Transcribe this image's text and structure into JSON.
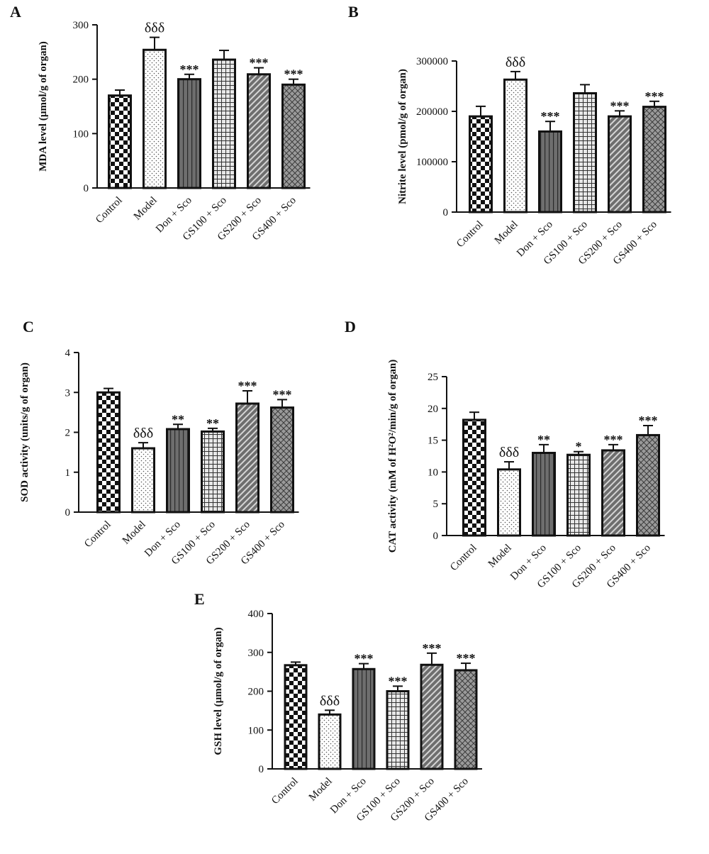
{
  "figure": {
    "background": "#ffffff",
    "ink": "#111111",
    "bar_dark": "#6e6e6e",
    "bar_mid": "#9a9a9a"
  },
  "chart_data": [
    {
      "panel": "A",
      "type": "bar",
      "categories": [
        "Control",
        "Model",
        "Don + Sco",
        "GS100 + Sco",
        "GS200 + Sco",
        "GS400 + Sco"
      ],
      "values": [
        170,
        254,
        200,
        236,
        209,
        190
      ],
      "errors": [
        10,
        23,
        9,
        17,
        12,
        10
      ],
      "annotations": [
        "",
        "δδδ",
        "***",
        "",
        "***",
        "***"
      ],
      "ylabel": "MDA level (µmol/g of organ)",
      "ylim": [
        0,
        300
      ],
      "yticks": [
        0,
        100,
        200,
        300
      ],
      "ytick_labels": [
        "0",
        "100",
        "200",
        "300"
      ]
    },
    {
      "panel": "B",
      "type": "bar",
      "categories": [
        "Control",
        "Model",
        "Don + Sco",
        "GS100 + Sco",
        "GS200 + Sco",
        "GS400 + Sco"
      ],
      "values": [
        190000,
        263000,
        160000,
        236000,
        190000,
        209000
      ],
      "errors": [
        20000,
        16000,
        20000,
        17000,
        11000,
        11000
      ],
      "annotations": [
        "",
        "δδδ",
        "***",
        "",
        "***",
        "***"
      ],
      "ylabel": "Nitrite level (pmol/g of organ)",
      "ylim": [
        0,
        300000
      ],
      "yticks": [
        0,
        100000,
        200000,
        300000
      ],
      "ytick_labels": [
        "0",
        "100000",
        "200000",
        "300000"
      ]
    },
    {
      "panel": "C",
      "type": "bar",
      "categories": [
        "Control",
        "Model",
        "Don + Sco",
        "GS100 + Sco",
        "GS200 + Sco",
        "GS400 + Sco"
      ],
      "values": [
        3.0,
        1.6,
        2.08,
        2.02,
        2.72,
        2.62
      ],
      "errors": [
        0.1,
        0.14,
        0.12,
        0.08,
        0.32,
        0.2
      ],
      "annotations": [
        "",
        "δδδ",
        "**",
        "**",
        "***",
        "***"
      ],
      "ylabel": "SOD activity (units/g of organ)",
      "ylim": [
        0,
        4
      ],
      "yticks": [
        0,
        1,
        2,
        3,
        4
      ],
      "ytick_labels": [
        "0",
        "1",
        "2",
        "3",
        "4"
      ]
    },
    {
      "panel": "D",
      "type": "bar",
      "categories": [
        "Control",
        "Model",
        "Don + Sco",
        "GS100 + Sco",
        "GS200 + Sco",
        "GS400 + Sco"
      ],
      "values": [
        18.2,
        10.4,
        13.0,
        12.7,
        13.4,
        15.8
      ],
      "errors": [
        1.2,
        1.2,
        1.3,
        0.5,
        0.9,
        1.5
      ],
      "annotations": [
        "",
        "δδδ",
        "**",
        "*",
        "***",
        "***"
      ],
      "ylabel": "CAT activity (mM of H²O²/min/g of organ)",
      "ylim": [
        0,
        25
      ],
      "yticks": [
        0,
        5,
        10,
        15,
        20,
        25
      ],
      "ytick_labels": [
        "0",
        "5",
        "10",
        "15",
        "20",
        "25"
      ]
    },
    {
      "panel": "E",
      "type": "bar",
      "categories": [
        "Control",
        "Model",
        "Don + Sco",
        "GS100 + Sco",
        "GS200 + Sco",
        "GS400 + Sco"
      ],
      "values": [
        267,
        140,
        257,
        200,
        268,
        254
      ],
      "errors": [
        8,
        11,
        14,
        13,
        30,
        18
      ],
      "annotations": [
        "",
        "δδδ",
        "***",
        "***",
        "***",
        "***"
      ],
      "ylabel": "GSH level (µmol/g of organ)",
      "ylim": [
        0,
        400
      ],
      "yticks": [
        0,
        100,
        200,
        300,
        400
      ],
      "ytick_labels": [
        "0",
        "100",
        "200",
        "300",
        "400"
      ]
    }
  ]
}
